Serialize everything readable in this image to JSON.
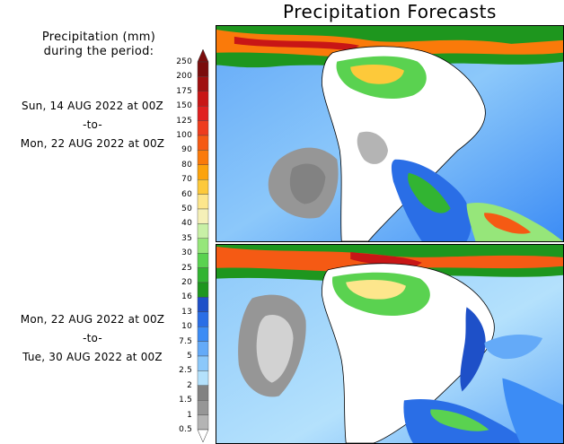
{
  "title": "Precipitation Forecasts",
  "legend": {
    "header_line1": "Precipitation (mm)",
    "header_line2": "during the period:",
    "levels": [
      "250",
      "200",
      "175",
      "150",
      "125",
      "100",
      "90",
      "80",
      "70",
      "60",
      "50",
      "40",
      "35",
      "30",
      "25",
      "20",
      "16",
      "13",
      "10",
      "7.5",
      "5",
      "2.5",
      "2",
      "1.5",
      "1",
      "0.5"
    ],
    "colors": [
      "#7a0c0c",
      "#a00f0f",
      "#c81616",
      "#e02020",
      "#ee3c1e",
      "#f55a14",
      "#fa7a0a",
      "#fca30c",
      "#fdc93a",
      "#fde68c",
      "#f5f0b8",
      "#c8f0a6",
      "#96e67a",
      "#5ad250",
      "#32b432",
      "#1e961e",
      "#1e50c8",
      "#2a6ee6",
      "#3c8cf5",
      "#64aaf8",
      "#8cc8fa",
      "#b4e1fc",
      "#828282",
      "#969696",
      "#b4b4b4",
      "#d2d2d2"
    ]
  },
  "periods": [
    {
      "start": "Sun, 14 AUG 2022 at 00Z",
      "sep": "-to-",
      "end": "Mon, 22 AUG 2022 at 00Z"
    },
    {
      "start": "Mon, 22 AUG 2022 at 00Z",
      "sep": "-to-",
      "end": "Tue, 30 AUG 2022 at 00Z"
    }
  ]
}
